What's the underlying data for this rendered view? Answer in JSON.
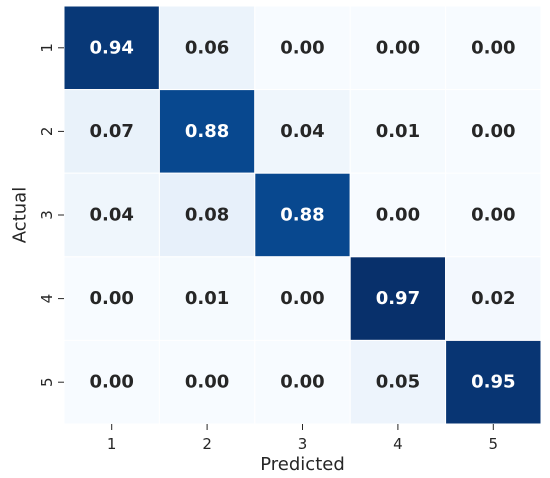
{
  "chart_data": {
    "type": "heatmap",
    "title": "",
    "xlabel": "Predicted",
    "ylabel": "Actual",
    "x_categories": [
      "1",
      "2",
      "3",
      "4",
      "5"
    ],
    "y_categories": [
      "1",
      "2",
      "3",
      "4",
      "5"
    ],
    "values": [
      [
        0.94,
        0.06,
        0.0,
        0.0,
        0.0
      ],
      [
        0.07,
        0.88,
        0.04,
        0.01,
        0.0
      ],
      [
        0.04,
        0.08,
        0.88,
        0.0,
        0.0
      ],
      [
        0.0,
        0.01,
        0.0,
        0.97,
        0.02
      ],
      [
        0.0,
        0.0,
        0.0,
        0.05,
        0.95
      ]
    ],
    "value_format": "0.00",
    "colormap": "Blues",
    "color_range": [
      0,
      0.97
    ],
    "grid_line_color": "#ffffff",
    "colorbar": false
  }
}
